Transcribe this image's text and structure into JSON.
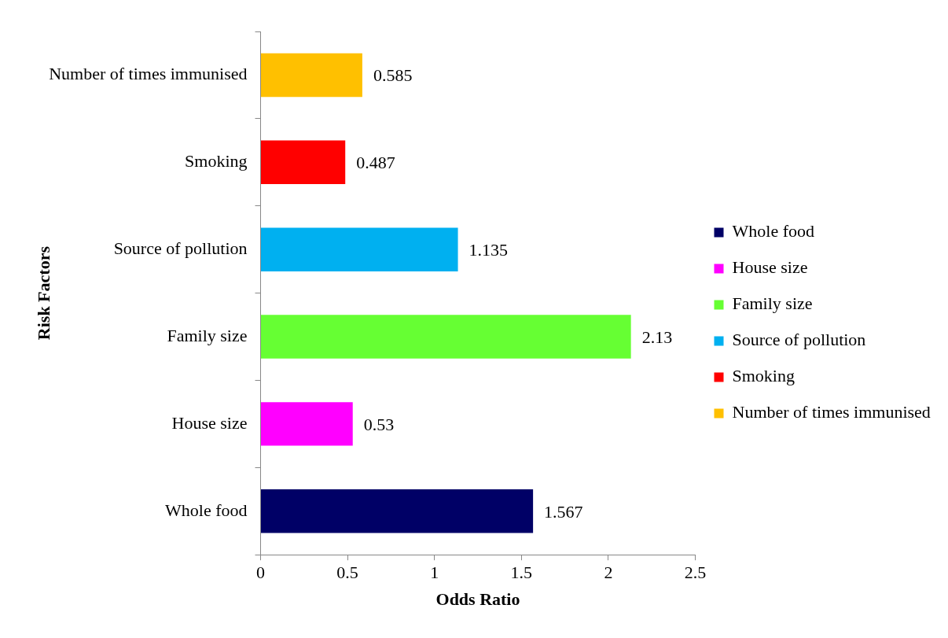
{
  "chart_data": {
    "type": "bar",
    "orientation": "horizontal",
    "categories": [
      "Number of times immunised",
      "Smoking",
      "Source of pollution",
      "Family size",
      "House size",
      "Whole food"
    ],
    "series": [
      {
        "name": "Whole food",
        "color": "#000066",
        "values": [
          null,
          null,
          null,
          null,
          null,
          1.567
        ]
      },
      {
        "name": "House size",
        "color": "#ff00ff",
        "values": [
          null,
          null,
          null,
          null,
          0.53,
          null
        ]
      },
      {
        "name": "Family size",
        "color": "#66ff33",
        "values": [
          null,
          null,
          null,
          2.13,
          null,
          null
        ]
      },
      {
        "name": "Source of pollution",
        "color": "#00b0f0",
        "values": [
          null,
          null,
          1.135,
          null,
          null,
          null
        ]
      },
      {
        "name": "Smoking",
        "color": "#ff0000",
        "values": [
          null,
          0.487,
          null,
          null,
          null,
          null
        ]
      },
      {
        "name": "Number of times immunised",
        "color": "#ffc000",
        "values": [
          0.585,
          null,
          null,
          null,
          null,
          null
        ]
      }
    ],
    "xlabel": "Odds Ratio",
    "ylabel": "Risk Factors",
    "xlim": [
      0,
      2.5
    ],
    "xticks": [
      0,
      0.5,
      1,
      1.5,
      2,
      2.5
    ],
    "grid": false,
    "legend": "right",
    "data_labels": true
  }
}
